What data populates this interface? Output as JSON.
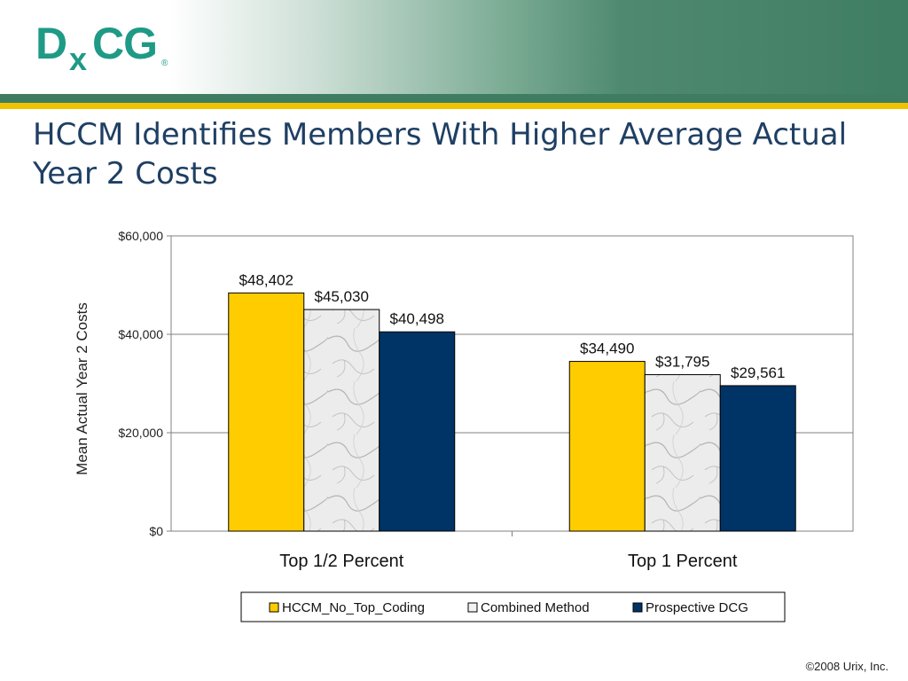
{
  "logo": {
    "d": "D",
    "x": "x",
    "cg": "CG",
    "reg": "®"
  },
  "title": "HCCM Identifies Members With Higher Average Actual Year 2 Costs",
  "footer": "©2008 Urix, Inc.",
  "colors": {
    "hccm": "#ffcc00",
    "combined": "#e6e6e6",
    "prospective": "#003366",
    "title": "#1f3f63",
    "brand_green": "#3f7d62",
    "brand_gold": "#f2c200"
  },
  "chart_data": {
    "type": "bar",
    "title": "",
    "xlabel": "",
    "ylabel": "Mean Actual Year 2 Costs",
    "ylim": [
      0,
      60000
    ],
    "yticks": [
      0,
      20000,
      40000,
      60000
    ],
    "ytick_labels": [
      "$0",
      "$20,000",
      "$40,000",
      "$60,000"
    ],
    "categories": [
      "Top 1/2 Percent",
      "Top 1 Percent"
    ],
    "series": [
      {
        "name": "HCCM_No_Top_Coding",
        "values": [
          48402,
          34490
        ],
        "labels": [
          "$48,402",
          "$34,490"
        ],
        "color": "#ffcc00"
      },
      {
        "name": "Combined Method",
        "values": [
          45030,
          31795
        ],
        "labels": [
          "$45,030",
          "$31,795"
        ],
        "color": "#e6e6e6",
        "pattern": "marble"
      },
      {
        "name": "Prospective DCG",
        "values": [
          40498,
          29561
        ],
        "labels": [
          "$40,498",
          "$29,561"
        ],
        "color": "#003366"
      }
    ],
    "grid": true,
    "legend_position": "bottom"
  }
}
